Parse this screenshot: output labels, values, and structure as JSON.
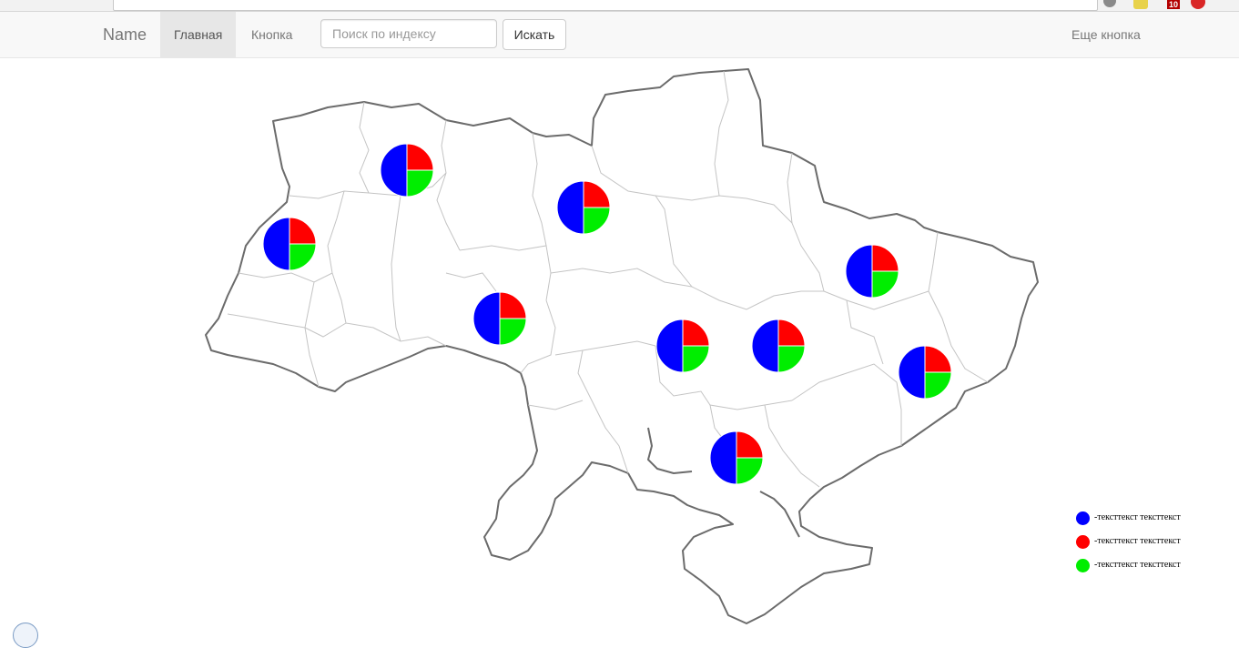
{
  "navbar": {
    "brand": "Name",
    "items": [
      {
        "label": "Главная",
        "active": true
      },
      {
        "label": "Кнопка",
        "active": false
      }
    ],
    "search": {
      "placeholder": "Поиск по индексу",
      "value": ""
    },
    "search_button": "Искать",
    "right_link": "Еще кнопка"
  },
  "map": {
    "pies": [
      {
        "slices": [
          0.5,
          0.25,
          0.25
        ]
      },
      {
        "slices": [
          0.5,
          0.25,
          0.25
        ]
      },
      {
        "slices": [
          0.5,
          0.25,
          0.25
        ]
      },
      {
        "slices": [
          0.5,
          0.25,
          0.25
        ]
      },
      {
        "slices": [
          0.5,
          0.25,
          0.25
        ]
      },
      {
        "slices": [
          0.5,
          0.25,
          0.25
        ]
      },
      {
        "slices": [
          0.5,
          0.25,
          0.25
        ]
      },
      {
        "slices": [
          0.5,
          0.25,
          0.25
        ]
      },
      {
        "slices": [
          0.5,
          0.25,
          0.25
        ]
      }
    ]
  },
  "legend": [
    {
      "label": "-тексттекст тексттекст",
      "color": "#0000ff"
    },
    {
      "label": "-тексттекст тексттекст",
      "color": "#ff0000"
    },
    {
      "label": "-тексттекст тексттекст",
      "color": "#00ee00"
    }
  ],
  "colors": {
    "blue": "#0000ff",
    "red": "#ff0000",
    "green": "#00ee00"
  }
}
